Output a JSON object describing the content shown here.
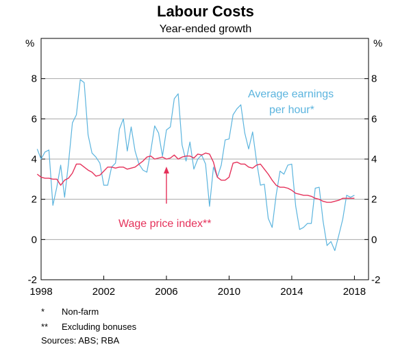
{
  "chart_data": {
    "type": "line",
    "title": "Labour Costs",
    "subtitle": "Year-ended growth",
    "ylabel_left": "%",
    "ylabel_right": "%",
    "ylim": [
      -2,
      10
    ],
    "yticks": [
      -2,
      0,
      2,
      4,
      6,
      8
    ],
    "xlim": [
      1998,
      2018.9
    ],
    "xticks": [
      1998,
      2002,
      2006,
      2010,
      2014,
      2018
    ],
    "grid": true,
    "series": [
      {
        "name": "Average earnings per hour*",
        "label_lines": [
          "Average earnings",
          "per hour*"
        ],
        "color": "#5BB4DE",
        "x": [
          1997.75,
          1998.0,
          1998.25,
          1998.5,
          1998.75,
          1999.0,
          1999.25,
          1999.5,
          1999.75,
          2000.0,
          2000.25,
          2000.5,
          2000.75,
          2001.0,
          2001.25,
          2001.5,
          2001.75,
          2002.0,
          2002.25,
          2002.5,
          2002.75,
          2003.0,
          2003.25,
          2003.5,
          2003.75,
          2004.0,
          2004.25,
          2004.5,
          2004.75,
          2005.0,
          2005.25,
          2005.5,
          2005.75,
          2006.0,
          2006.25,
          2006.5,
          2006.75,
          2007.0,
          2007.25,
          2007.5,
          2007.75,
          2008.0,
          2008.25,
          2008.5,
          2008.75,
          2009.0,
          2009.25,
          2009.5,
          2009.75,
          2010.0,
          2010.25,
          2010.5,
          2010.75,
          2011.0,
          2011.25,
          2011.5,
          2011.75,
          2012.0,
          2012.25,
          2012.5,
          2012.75,
          2013.0,
          2013.25,
          2013.5,
          2013.75,
          2014.0,
          2014.25,
          2014.5,
          2014.75,
          2015.0,
          2015.25,
          2015.5,
          2015.75,
          2016.0,
          2016.25,
          2016.5,
          2016.75,
          2017.0,
          2017.25,
          2017.5,
          2017.75,
          2018.0
        ],
        "values": [
          4.5,
          4.0,
          4.35,
          4.45,
          1.7,
          2.6,
          3.7,
          2.1,
          3.8,
          5.8,
          6.2,
          7.95,
          7.8,
          5.2,
          4.3,
          4.1,
          3.8,
          2.7,
          2.7,
          3.6,
          3.8,
          5.5,
          6.0,
          4.4,
          5.6,
          4.4,
          3.75,
          3.45,
          3.35,
          4.4,
          5.65,
          5.3,
          4.15,
          5.45,
          5.6,
          7.0,
          7.25,
          4.7,
          3.9,
          4.85,
          3.5,
          4.0,
          4.2,
          3.75,
          1.65,
          3.6,
          3.1,
          3.7,
          4.95,
          5.0,
          6.2,
          6.5,
          6.7,
          5.3,
          4.5,
          5.35,
          3.9,
          2.7,
          2.75,
          1.05,
          0.6,
          2.2,
          3.4,
          3.25,
          3.7,
          3.75,
          1.65,
          0.5,
          0.6,
          0.8,
          0.8,
          2.55,
          2.6,
          0.9,
          -0.3,
          -0.1,
          -0.55,
          0.2,
          1.0,
          2.2,
          2.1,
          2.2
        ]
      },
      {
        "name": "Wage price index**",
        "label_lines": [
          "Wage price index**"
        ],
        "color": "#E5315A",
        "x": [
          1997.75,
          1998.0,
          1998.25,
          1998.5,
          1998.75,
          1999.0,
          1999.25,
          1999.5,
          1999.75,
          2000.0,
          2000.25,
          2000.5,
          2000.75,
          2001.0,
          2001.25,
          2001.5,
          2001.75,
          2002.0,
          2002.25,
          2002.5,
          2002.75,
          2003.0,
          2003.25,
          2003.5,
          2003.75,
          2004.0,
          2004.25,
          2004.5,
          2004.75,
          2005.0,
          2005.25,
          2005.5,
          2005.75,
          2006.0,
          2006.25,
          2006.5,
          2006.75,
          2007.0,
          2007.25,
          2007.5,
          2007.75,
          2008.0,
          2008.25,
          2008.5,
          2008.75,
          2009.0,
          2009.25,
          2009.5,
          2009.75,
          2010.0,
          2010.25,
          2010.5,
          2010.75,
          2011.0,
          2011.25,
          2011.5,
          2011.75,
          2012.0,
          2012.25,
          2012.5,
          2012.75,
          2013.0,
          2013.25,
          2013.5,
          2013.75,
          2014.0,
          2014.25,
          2014.5,
          2014.75,
          2015.0,
          2015.25,
          2015.5,
          2015.75,
          2016.0,
          2016.25,
          2016.5,
          2016.75,
          2017.0,
          2017.25,
          2017.5,
          2017.75,
          2018.0
        ],
        "values": [
          3.25,
          3.1,
          3.05,
          3.05,
          3.0,
          3.0,
          2.7,
          2.95,
          3.05,
          3.3,
          3.75,
          3.75,
          3.6,
          3.45,
          3.35,
          3.15,
          3.2,
          3.4,
          3.6,
          3.6,
          3.55,
          3.6,
          3.6,
          3.5,
          3.55,
          3.6,
          3.75,
          3.9,
          4.1,
          4.15,
          4.0,
          4.05,
          4.1,
          4.0,
          4.05,
          4.2,
          4.0,
          4.1,
          4.15,
          4.15,
          4.05,
          4.25,
          4.2,
          4.3,
          4.25,
          3.85,
          3.1,
          2.95,
          2.95,
          3.1,
          3.8,
          3.85,
          3.75,
          3.75,
          3.6,
          3.55,
          3.7,
          3.75,
          3.5,
          3.25,
          2.95,
          2.7,
          2.6,
          2.6,
          2.55,
          2.45,
          2.3,
          2.25,
          2.2,
          2.2,
          2.15,
          2.05,
          2.0,
          1.9,
          1.85,
          1.85,
          1.9,
          1.95,
          2.05,
          2.05,
          2.05,
          2.05
        ]
      }
    ],
    "annotation": {
      "series": "Wage price index**",
      "at_x": 2006
    }
  },
  "footnotes": [
    {
      "mark": "*",
      "text": "Non-farm"
    },
    {
      "mark": "**",
      "text": "Excluding bonuses"
    }
  ],
  "sources": "Sources:  ABS; RBA",
  "colors": {
    "grid": "#a8a8a8",
    "axis": "#000000"
  }
}
